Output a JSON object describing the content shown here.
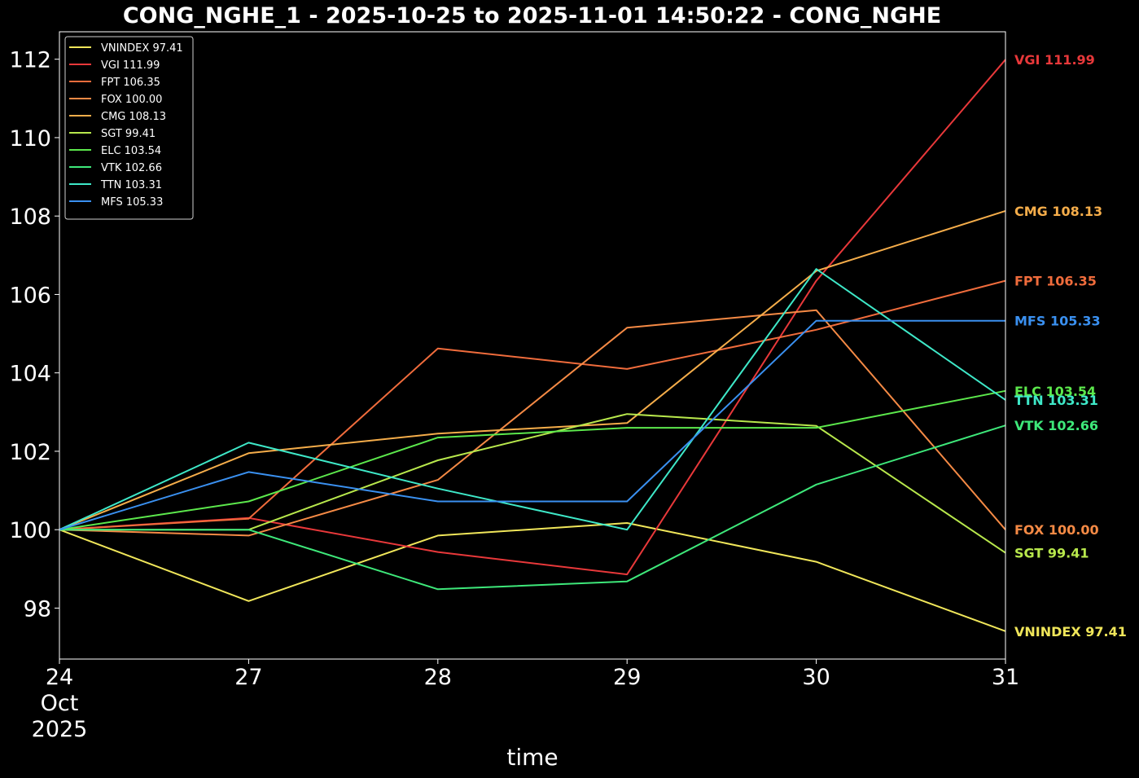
{
  "chart_data": {
    "type": "line",
    "title": "CONG_NGHE_1 - 2025-10-25 to 2025-11-01 14:50:22 - CONG_NGHE",
    "xlabel": "time",
    "ylabel": "",
    "x": [
      "2025-10-24",
      "2025-10-27",
      "2025-10-28",
      "2025-10-29",
      "2025-10-30",
      "2025-10-31"
    ],
    "x_tick_labels": [
      [
        "24",
        "Oct",
        "2025"
      ],
      [
        "27"
      ],
      [
        "28"
      ],
      [
        "29"
      ],
      [
        "30"
      ],
      [
        "31"
      ]
    ],
    "ylim": [
      96.7,
      112.7
    ],
    "y_ticks": [
      98,
      100,
      102,
      104,
      106,
      108,
      110,
      112
    ],
    "grid": false,
    "legend_position": "top-left",
    "background": "#000000",
    "series": [
      {
        "name": "VNINDEX 97.41",
        "color": "#f0e65a",
        "values": [
          100,
          98.18,
          99.85,
          100.17,
          99.18,
          97.41
        ]
      },
      {
        "name": "VGI 111.99",
        "color": "#e8383a",
        "values": [
          100,
          100.3,
          99.43,
          98.86,
          106.35,
          111.99
        ]
      },
      {
        "name": "FPT 106.35",
        "color": "#f06c3c",
        "values": [
          100,
          100.28,
          104.62,
          104.1,
          105.1,
          106.35
        ]
      },
      {
        "name": "FOX 100.00",
        "color": "#f58a45",
        "values": [
          100,
          99.85,
          101.27,
          105.15,
          105.6,
          100.0
        ]
      },
      {
        "name": "CMG 108.13",
        "color": "#f5ad4a",
        "values": [
          100,
          101.95,
          102.45,
          102.72,
          106.6,
          108.13
        ]
      },
      {
        "name": "SGT 99.41",
        "color": "#b8e84c",
        "values": [
          100,
          100.0,
          101.77,
          102.95,
          102.65,
          99.41
        ]
      },
      {
        "name": "ELC 103.54",
        "color": "#5ce84c",
        "values": [
          100,
          100.72,
          102.35,
          102.6,
          102.6,
          103.54
        ]
      },
      {
        "name": "VTK 102.66",
        "color": "#3ee87a",
        "values": [
          100,
          100.0,
          98.48,
          98.68,
          101.15,
          102.66
        ]
      },
      {
        "name": "TTN 103.31",
        "color": "#3ee8c8",
        "values": [
          100,
          102.22,
          101.05,
          100.0,
          106.65,
          103.31
        ]
      },
      {
        "name": "MFS 105.33",
        "color": "#3a90f0",
        "values": [
          100,
          101.47,
          100.72,
          100.72,
          105.33,
          105.33
        ]
      }
    ]
  }
}
